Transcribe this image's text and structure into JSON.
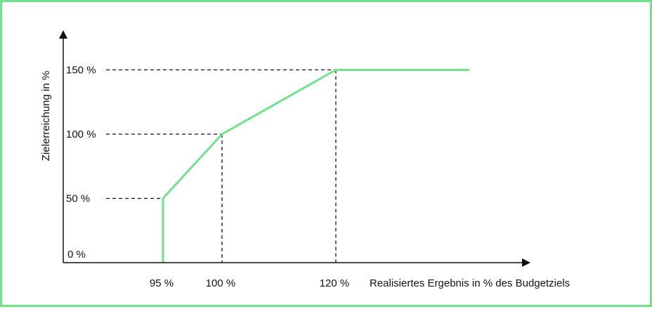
{
  "chart_data": {
    "type": "line",
    "title": "",
    "xlabel": "Realisiertes Ergebnis in % des Budgetziels",
    "ylabel": "Zielerreichung in %",
    "x_ticks": [
      {
        "value": 95,
        "label": "95 %"
      },
      {
        "value": 100,
        "label": "100 %"
      },
      {
        "value": 120,
        "label": "120 %"
      }
    ],
    "y_ticks": [
      {
        "value": 0,
        "label": "0 %"
      },
      {
        "value": 50,
        "label": "50 %"
      },
      {
        "value": 100,
        "label": "100 %"
      },
      {
        "value": 150,
        "label": "150 %"
      }
    ],
    "series": [
      {
        "x": [
          95,
          95,
          100,
          120,
          145
        ],
        "y": [
          0,
          50,
          100,
          150,
          150
        ]
      }
    ],
    "reference_lines": [
      {
        "x": 95,
        "y": 50
      },
      {
        "x": 100,
        "y": 100
      },
      {
        "x": 120,
        "y": 150
      }
    ],
    "grid": false,
    "colors": {
      "line": "#6ee38a",
      "frame": "#6ee38a",
      "axis": "#111111"
    }
  }
}
